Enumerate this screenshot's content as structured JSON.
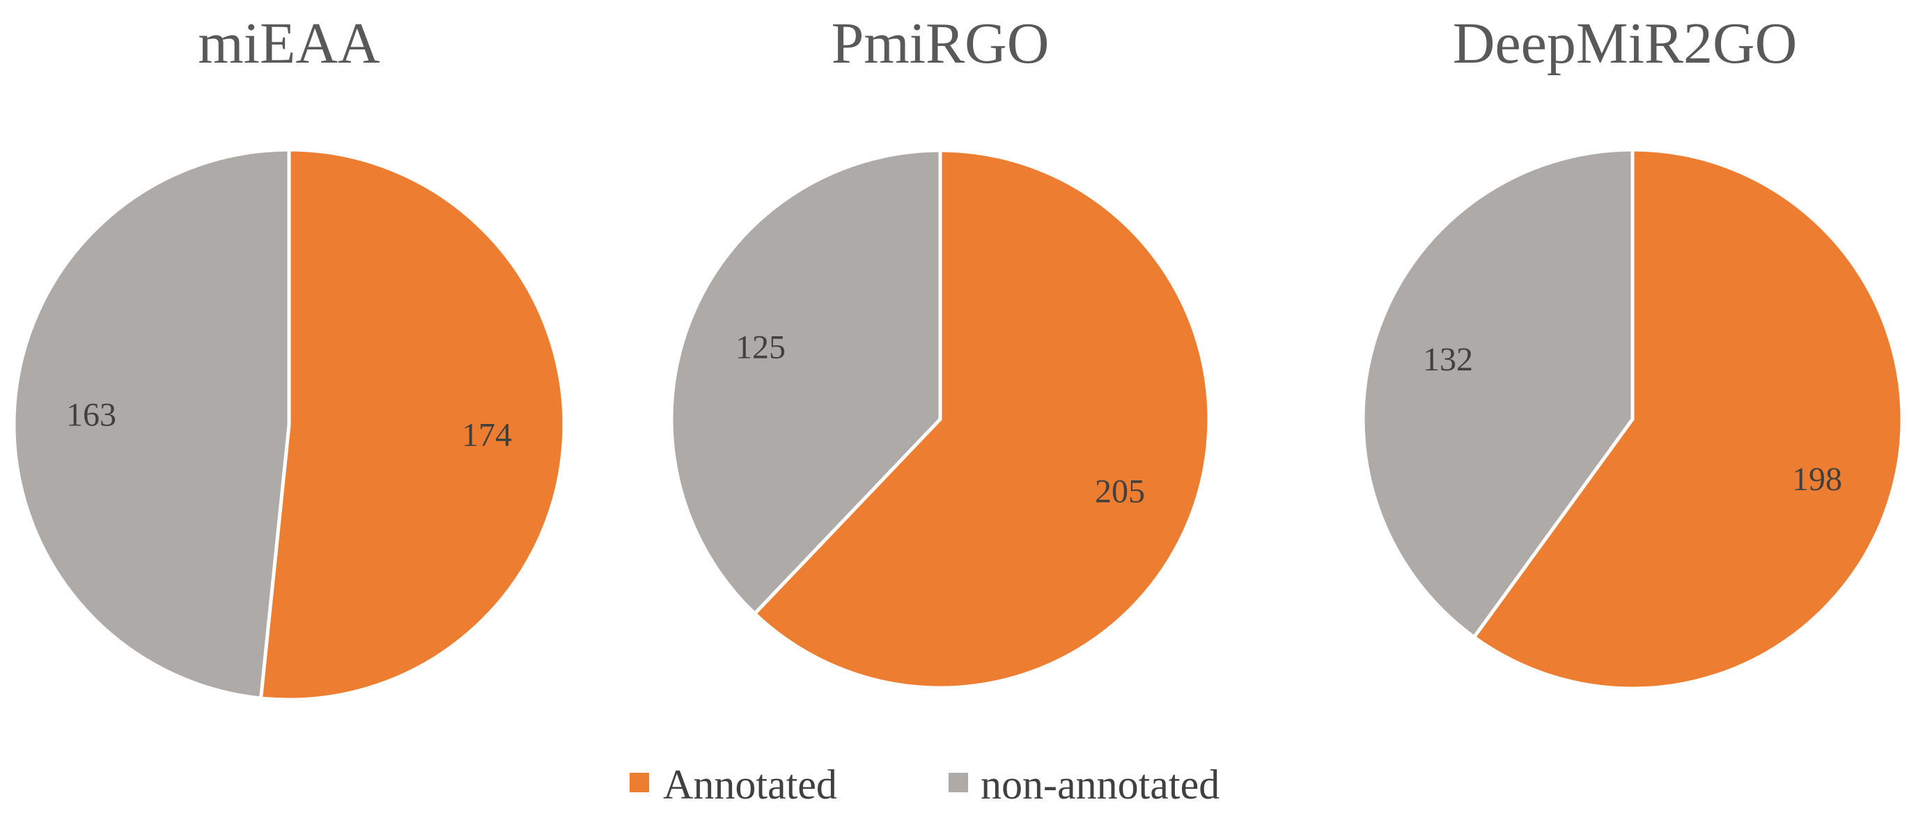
{
  "chart_data": [
    {
      "type": "pie",
      "title": "miEAA",
      "categories": [
        "Annotated",
        "non-annotated"
      ],
      "values": [
        174,
        163
      ]
    },
    {
      "type": "pie",
      "title": "PmiRGO",
      "categories": [
        "Annotated",
        "non-annotated"
      ],
      "values": [
        205,
        125
      ]
    },
    {
      "type": "pie",
      "title": "DeepMiR2GO",
      "categories": [
        "Annotated",
        "non-annotated"
      ],
      "values": [
        198,
        132
      ]
    }
  ],
  "colors": {
    "Annotated": "#ED7D31",
    "non-annotated": "#ADAAA8",
    "slice_border": "#ffffff"
  },
  "legend": {
    "position": "bottom",
    "items": [
      {
        "label": "Annotated",
        "color": "#ED7D31"
      },
      {
        "label": "non-annotated",
        "color": "#ADAAA8"
      }
    ]
  }
}
